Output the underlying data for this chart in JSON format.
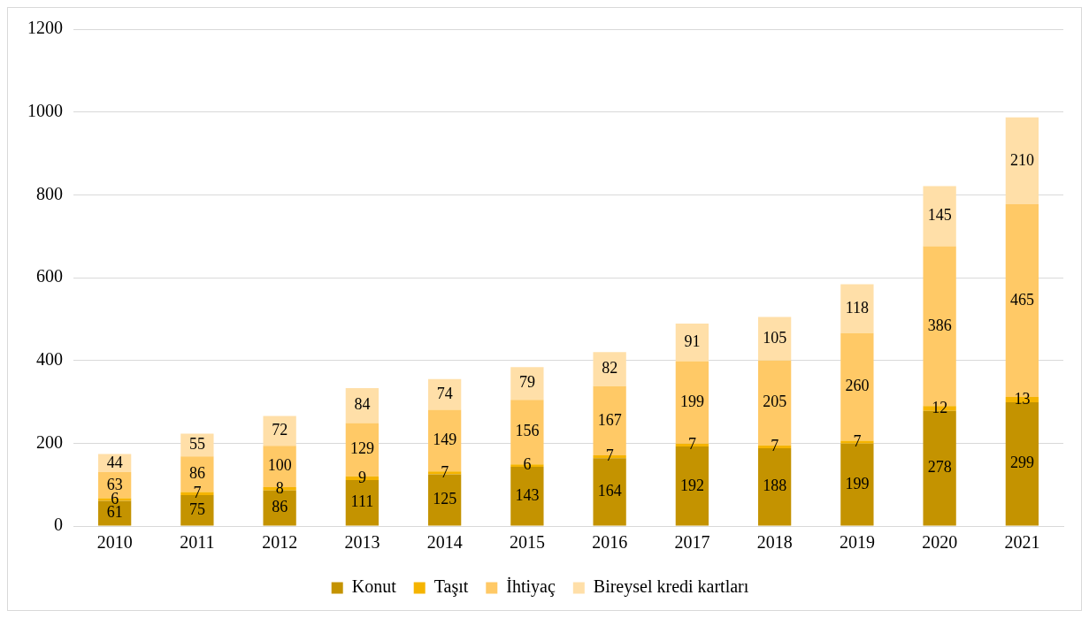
{
  "chart_data": {
    "type": "bar",
    "stacked": true,
    "categories": [
      "2010",
      "2011",
      "2012",
      "2013",
      "2014",
      "2015",
      "2016",
      "2017",
      "2018",
      "2019",
      "2020",
      "2021"
    ],
    "series": [
      {
        "name": "Konut",
        "color": "#c49300",
        "values": [
          61,
          75,
          86,
          111,
          125,
          143,
          164,
          192,
          188,
          199,
          278,
          299
        ]
      },
      {
        "name": "Taşıt",
        "color": "#f5b400",
        "values": [
          6,
          7,
          8,
          9,
          7,
          6,
          7,
          7,
          7,
          7,
          12,
          13
        ]
      },
      {
        "name": "İhtiyaç",
        "color": "#ffc966",
        "values": [
          63,
          86,
          100,
          129,
          149,
          156,
          167,
          199,
          205,
          260,
          386,
          465
        ]
      },
      {
        "name": "Bireysel kredi kartları",
        "color": "#ffdfa8",
        "values": [
          44,
          55,
          72,
          84,
          74,
          79,
          82,
          91,
          105,
          118,
          145,
          210
        ]
      }
    ],
    "ylim": [
      0,
      1200
    ],
    "yticks": [
      0,
      200,
      400,
      600,
      800,
      1000,
      1200
    ],
    "grid": "y",
    "legend": "bottom",
    "data_labels": true
  }
}
